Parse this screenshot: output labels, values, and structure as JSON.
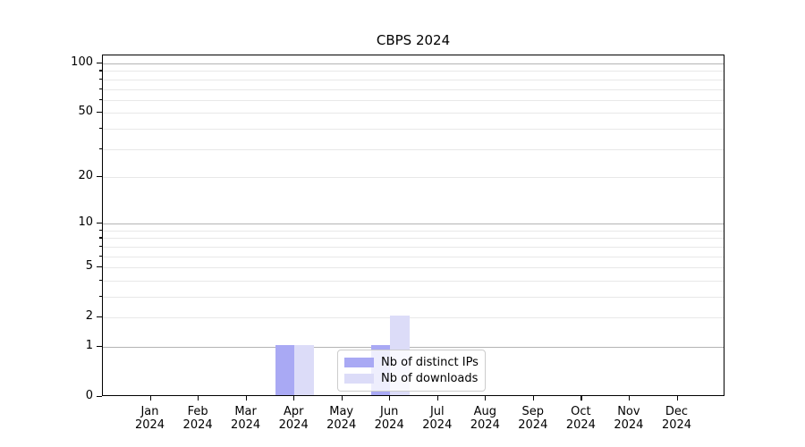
{
  "title": "CBPS 2024",
  "chart_data": {
    "type": "bar",
    "title": "CBPS 2024",
    "categories": [
      "Jan 2024",
      "Feb 2024",
      "Mar 2024",
      "Apr 2024",
      "May 2024",
      "Jun 2024",
      "Jul 2024",
      "Aug 2024",
      "Sep 2024",
      "Oct 2024",
      "Nov 2024",
      "Dec 2024"
    ],
    "series": [
      {
        "name": "Nb of distinct IPs",
        "color": "#a9a9f4",
        "values": [
          0,
          0,
          0,
          1,
          0,
          1,
          0,
          0,
          0,
          0,
          0,
          0
        ]
      },
      {
        "name": "Nb of downloads",
        "color": "#dcdcf8",
        "values": [
          0,
          0,
          0,
          1,
          0,
          2,
          0,
          0,
          0,
          0,
          0,
          0
        ]
      }
    ],
    "xlabel": "",
    "ylabel": "",
    "yscale": "log1p",
    "ylim": [
      0,
      112
    ],
    "y_tick_values": [
      0,
      1,
      2,
      5,
      10,
      20,
      50,
      100
    ],
    "y_major_gridlines": [
      1,
      10,
      100
    ],
    "y_minor_gridlines": [
      2,
      3,
      4,
      5,
      6,
      7,
      8,
      9,
      20,
      30,
      40,
      50,
      60,
      70,
      80,
      90
    ],
    "grid": true,
    "legend_position": "lower center"
  },
  "colors": {
    "major_grid": "#b4b4b4",
    "minor_grid": "#e8e8e8",
    "spine": "#000000",
    "background": "#ffffff"
  }
}
